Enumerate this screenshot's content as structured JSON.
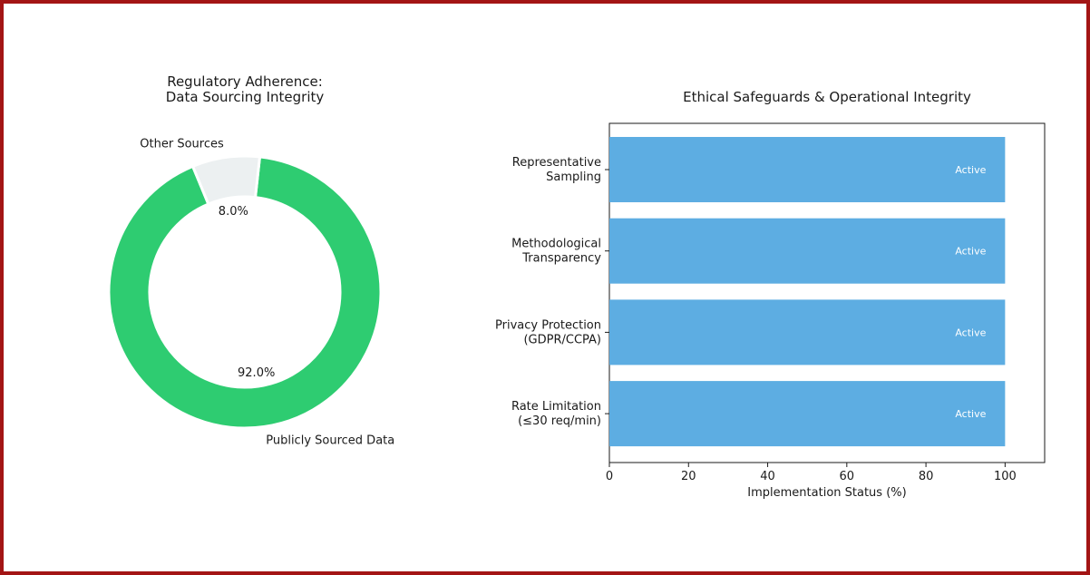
{
  "colors": {
    "frame": "#a31515",
    "donut_primary": "#2ecc71",
    "donut_other": "#ecf0f1",
    "bar": "#5dade2"
  },
  "chart_data": [
    {
      "type": "pie",
      "variant": "donut",
      "title_lines": [
        "Regulatory Adherence:",
        "Data Sourcing Integrity"
      ],
      "slices": [
        {
          "label": "Publicly Sourced Data",
          "value": 92.0,
          "pct_label": "92.0%",
          "color": "#2ecc71"
        },
        {
          "label": "Other Sources",
          "value": 8.0,
          "pct_label": "8.0%",
          "color": "#ecf0f1"
        }
      ]
    },
    {
      "type": "bar",
      "orientation": "horizontal",
      "title": "Ethical Safeguards & Operational Integrity",
      "xlabel": "Implementation Status (%)",
      "xlim": [
        0,
        110
      ],
      "xticks": [
        "0",
        "20",
        "40",
        "60",
        "80",
        "100"
      ],
      "grid": false,
      "categories": [
        {
          "lines": [
            "Representative",
            "Sampling"
          ],
          "value": 100,
          "label": "Active"
        },
        {
          "lines": [
            "Methodological",
            "Transparency"
          ],
          "value": 100,
          "label": "Active"
        },
        {
          "lines": [
            "Privacy Protection",
            "(GDPR/CCPA)"
          ],
          "value": 100,
          "label": "Active"
        },
        {
          "lines": [
            "Rate Limitation",
            "(≤30 req/min)"
          ],
          "value": 100,
          "label": "Active"
        }
      ]
    }
  ]
}
